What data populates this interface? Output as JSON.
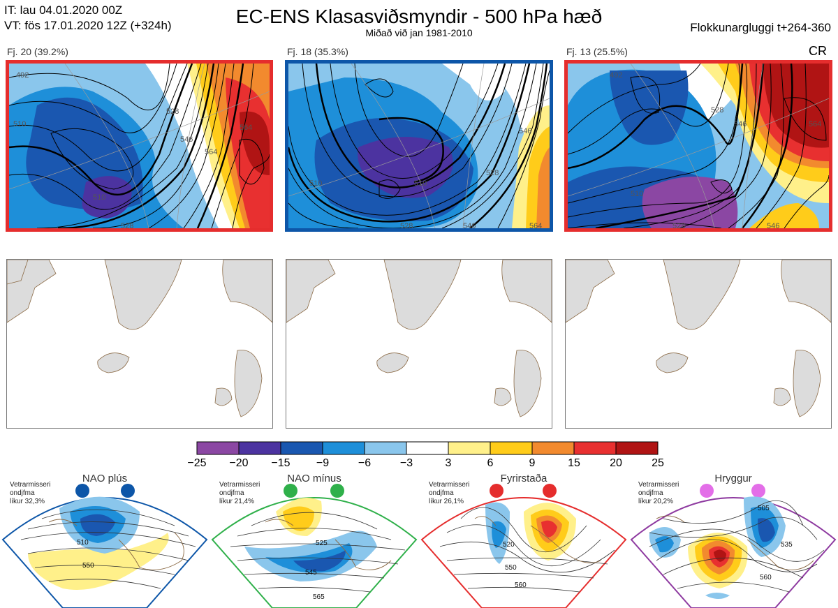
{
  "header": {
    "it_line": "IT: lau 04.01.2020 00Z",
    "vt_line": "VT: fös 17.01.2020 12Z  (+324h)",
    "title": "EC-ENS Klasasviðsmyndir - 500 hPa hæð",
    "subtitle": "Miðað við jan 1981-2010",
    "window": "Flokkunargluggi t+264-360"
  },
  "clusters": [
    {
      "label": "Fj. 20 (39.2%)",
      "border_color": "#e52d2d"
    },
    {
      "label": "Fj. 18 (35.3%)",
      "border_color": "#0d56a8"
    },
    {
      "label": "Fj. 13 (25.5%)",
      "border_color": "#e52d2d",
      "tag": "CR"
    }
  ],
  "contour_labels": {
    "c1": [
      "492",
      "510",
      "510",
      "528",
      "546",
      "564",
      "564",
      "528"
    ],
    "c2": [
      "510",
      "510",
      "528",
      "546",
      "546",
      "564",
      "528"
    ],
    "c3": [
      "492",
      "510",
      "528",
      "528",
      "546",
      "546",
      "564"
    ]
  },
  "colorbar": {
    "ticks": [
      "−25",
      "−20",
      "−15",
      "−9",
      "−6",
      "−3",
      "3",
      "6",
      "9",
      "15",
      "20",
      "25"
    ],
    "colors": [
      "#8b47a3",
      "#4c33a0",
      "#1a57b0",
      "#1e8fd9",
      "#8ac6ec",
      "#ffffff",
      "#fff08a",
      "#ffcc1a",
      "#f28a2e",
      "#e83030",
      "#b01414"
    ]
  },
  "regimes": [
    {
      "name": "NAO plús",
      "info": [
        "Vetrarmisseri",
        "ondjfma",
        "líkur 32,3%"
      ],
      "color": "#0d56a8",
      "labels": [
        "510",
        "550"
      ]
    },
    {
      "name": "NAO mínus",
      "info": [
        "Vetrarmisseri",
        "ondjfma",
        "líkur 21,4%"
      ],
      "color": "#2fb04a",
      "labels": [
        "525",
        "545",
        "565"
      ]
    },
    {
      "name": "Fyrirstaða",
      "info": [
        "Vetrarmisseri",
        "ondjfma",
        "líkur 26,1%"
      ],
      "color": "#e52d2d",
      "labels": [
        "520",
        "550",
        "560"
      ]
    },
    {
      "name": "Hryggur",
      "info": [
        "Vetrarmisseri",
        "ondjfma",
        "líkur 20,2%"
      ],
      "color": "#e36ee8",
      "labels": [
        "505",
        "535",
        "560"
      ]
    }
  ]
}
